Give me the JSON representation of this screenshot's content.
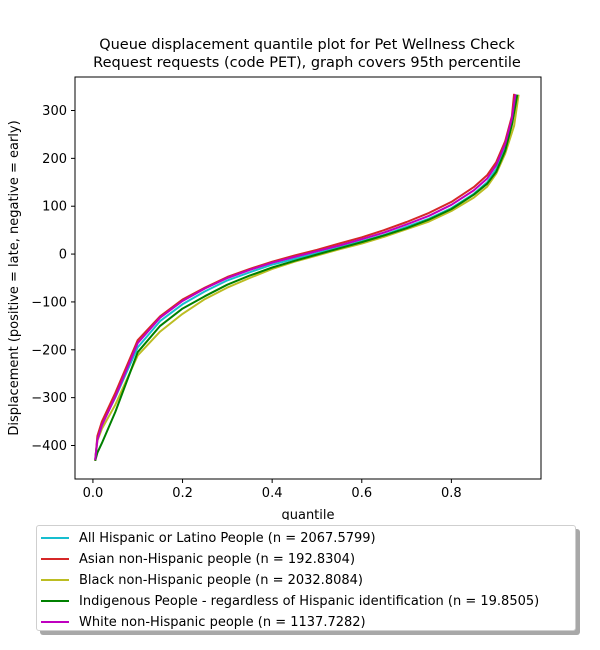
{
  "chart_data": {
    "type": "line",
    "title": [
      "Queue displacement quantile plot for Pet Wellness Check",
      "Request  requests (code PET), graph covers 95th percentile"
    ],
    "xlabel": "quantile",
    "ylabel": "Displacement (positive = late, negative = early)",
    "xlim": [
      -0.04,
      1.0
    ],
    "ylim": [
      -470,
      370
    ],
    "xticks": [
      0.0,
      0.2,
      0.4,
      0.6,
      0.8
    ],
    "yticks": [
      -400,
      -300,
      -200,
      -100,
      0,
      100,
      200,
      300
    ],
    "xtick_labels": [
      "0.0",
      "0.2",
      "0.4",
      "0.6",
      "0.8"
    ],
    "ytick_labels": [
      "−400",
      "−300",
      "−200",
      "−100",
      "0",
      "100",
      "200",
      "300"
    ],
    "grid": false,
    "legend_position": "below",
    "series": [
      {
        "name": "All Hispanic or Latino People (n = 2067.5799)",
        "color": "#17becf",
        "points": [
          [
            0.005,
            -430
          ],
          [
            0.01,
            -385
          ],
          [
            0.02,
            -355
          ],
          [
            0.05,
            -300
          ],
          [
            0.1,
            -195
          ],
          [
            0.15,
            -140
          ],
          [
            0.2,
            -105
          ],
          [
            0.25,
            -78
          ],
          [
            0.3,
            -55
          ],
          [
            0.35,
            -38
          ],
          [
            0.4,
            -22
          ],
          [
            0.45,
            -10
          ],
          [
            0.5,
            2
          ],
          [
            0.55,
            14
          ],
          [
            0.6,
            27
          ],
          [
            0.65,
            40
          ],
          [
            0.7,
            57
          ],
          [
            0.75,
            74
          ],
          [
            0.8,
            96
          ],
          [
            0.85,
            126
          ],
          [
            0.88,
            150
          ],
          [
            0.9,
            178
          ],
          [
            0.92,
            222
          ],
          [
            0.935,
            275
          ],
          [
            0.945,
            333
          ]
        ]
      },
      {
        "name": "Asian non-Hispanic people (n = 192.8304)",
        "color": "#d62728",
        "points": [
          [
            0.005,
            -432
          ],
          [
            0.01,
            -380
          ],
          [
            0.02,
            -350
          ],
          [
            0.05,
            -290
          ],
          [
            0.1,
            -180
          ],
          [
            0.15,
            -130
          ],
          [
            0.2,
            -95
          ],
          [
            0.25,
            -70
          ],
          [
            0.3,
            -48
          ],
          [
            0.35,
            -31
          ],
          [
            0.4,
            -16
          ],
          [
            0.45,
            -3
          ],
          [
            0.5,
            9
          ],
          [
            0.55,
            22
          ],
          [
            0.6,
            35
          ],
          [
            0.65,
            50
          ],
          [
            0.7,
            67
          ],
          [
            0.75,
            86
          ],
          [
            0.8,
            109
          ],
          [
            0.85,
            140
          ],
          [
            0.88,
            165
          ],
          [
            0.9,
            192
          ],
          [
            0.92,
            236
          ],
          [
            0.935,
            288
          ],
          [
            0.94,
            335
          ]
        ]
      },
      {
        "name": "Black non-Hispanic people (n = 2032.8084)",
        "color": "#bcbd22",
        "points": [
          [
            0.005,
            -430
          ],
          [
            0.01,
            -390
          ],
          [
            0.02,
            -365
          ],
          [
            0.05,
            -315
          ],
          [
            0.1,
            -212
          ],
          [
            0.15,
            -162
          ],
          [
            0.2,
            -125
          ],
          [
            0.25,
            -94
          ],
          [
            0.3,
            -70
          ],
          [
            0.35,
            -50
          ],
          [
            0.4,
            -31
          ],
          [
            0.45,
            -16
          ],
          [
            0.5,
            -3
          ],
          [
            0.55,
            10
          ],
          [
            0.6,
            22
          ],
          [
            0.65,
            36
          ],
          [
            0.7,
            52
          ],
          [
            0.75,
            68
          ],
          [
            0.8,
            90
          ],
          [
            0.85,
            118
          ],
          [
            0.88,
            141
          ],
          [
            0.9,
            168
          ],
          [
            0.92,
            210
          ],
          [
            0.94,
            268
          ],
          [
            0.95,
            333
          ]
        ]
      },
      {
        "name": "Indigenous People - regardless of Hispanic identification (n = 19.8505)",
        "color": "#008000",
        "points": [
          [
            0.005,
            -432
          ],
          [
            0.01,
            -415
          ],
          [
            0.02,
            -395
          ],
          [
            0.05,
            -330
          ],
          [
            0.1,
            -205
          ],
          [
            0.15,
            -150
          ],
          [
            0.2,
            -114
          ],
          [
            0.25,
            -88
          ],
          [
            0.3,
            -64
          ],
          [
            0.35,
            -45
          ],
          [
            0.4,
            -28
          ],
          [
            0.45,
            -14
          ],
          [
            0.5,
            -1
          ],
          [
            0.55,
            12
          ],
          [
            0.6,
            25
          ],
          [
            0.65,
            39
          ],
          [
            0.7,
            54
          ],
          [
            0.75,
            72
          ],
          [
            0.8,
            94
          ],
          [
            0.85,
            124
          ],
          [
            0.88,
            147
          ],
          [
            0.9,
            172
          ],
          [
            0.92,
            216
          ],
          [
            0.935,
            270
          ],
          [
            0.947,
            333
          ]
        ]
      },
      {
        "name": "White non-Hispanic people (n = 1137.7282)",
        "color": "#bf00bf",
        "points": [
          [
            0.005,
            -430
          ],
          [
            0.01,
            -388
          ],
          [
            0.02,
            -358
          ],
          [
            0.05,
            -298
          ],
          [
            0.1,
            -186
          ],
          [
            0.15,
            -133
          ],
          [
            0.2,
            -98
          ],
          [
            0.25,
            -72
          ],
          [
            0.3,
            -50
          ],
          [
            0.35,
            -33
          ],
          [
            0.4,
            -18
          ],
          [
            0.45,
            -6
          ],
          [
            0.5,
            6
          ],
          [
            0.55,
            18
          ],
          [
            0.6,
            31
          ],
          [
            0.65,
            45
          ],
          [
            0.7,
            62
          ],
          [
            0.75,
            80
          ],
          [
            0.8,
            103
          ],
          [
            0.85,
            133
          ],
          [
            0.88,
            158
          ],
          [
            0.9,
            186
          ],
          [
            0.92,
            230
          ],
          [
            0.935,
            283
          ],
          [
            0.943,
            334
          ]
        ]
      }
    ]
  }
}
